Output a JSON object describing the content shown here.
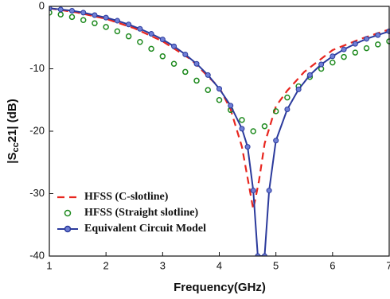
{
  "chart_data": {
    "type": "line",
    "xlabel": "Frequency(GHz)",
    "ylabel": {
      "main": "|S",
      "sub": "cc",
      "rest": "21| (dB)"
    },
    "xlim": [
      1,
      7
    ],
    "xticks": [
      1,
      2,
      3,
      4,
      5,
      6,
      7
    ],
    "ylim": [
      -40,
      0
    ],
    "yticks": [
      0,
      -10,
      -20,
      -30,
      -40
    ],
    "legend": "lower-left",
    "series": [
      {
        "name": "HFSS (C-slotline)",
        "color": "#e8261f",
        "style": "dashed",
        "x": [
          1.0,
          1.5,
          2.0,
          2.5,
          3.0,
          3.5,
          4.0,
          4.2,
          4.4,
          4.55,
          4.6,
          4.7,
          4.8,
          5.0,
          5.2,
          5.5,
          6.0,
          6.5,
          7.0
        ],
        "values": [
          -0.3,
          -1.0,
          -2.0,
          -3.5,
          -5.6,
          -8.5,
          -13.0,
          -16.5,
          -22.5,
          -30.0,
          -32.5,
          -28.0,
          -22.0,
          -16.0,
          -13.5,
          -10.5,
          -7.0,
          -5.2,
          -3.7
        ]
      },
      {
        "name": "HFSS (Straight slotline)",
        "color": "#1e8a1e",
        "style": "circles",
        "x": [
          1.0,
          1.2,
          1.4,
          1.6,
          1.8,
          2.0,
          2.2,
          2.4,
          2.6,
          2.8,
          3.0,
          3.2,
          3.4,
          3.6,
          3.8,
          4.0,
          4.2,
          4.4,
          4.6,
          4.8,
          5.0,
          5.2,
          5.4,
          5.6,
          5.8,
          6.0,
          6.2,
          6.4,
          6.6,
          6.8,
          7.0
        ],
        "values": [
          -1.0,
          -1.3,
          -1.7,
          -2.2,
          -2.7,
          -3.3,
          -4.0,
          -4.8,
          -5.7,
          -6.8,
          -8.0,
          -9.2,
          -10.5,
          -11.9,
          -13.4,
          -15.0,
          -16.6,
          -18.2,
          -20.0,
          -19.2,
          -16.8,
          -14.6,
          -12.8,
          -11.3,
          -10.0,
          -9.0,
          -8.1,
          -7.4,
          -6.7,
          -6.1,
          -5.6
        ]
      },
      {
        "name": "Equivalent Circuit Model",
        "color": "#2b3a9c",
        "style": "line-markers",
        "x": [
          1.0,
          1.2,
          1.4,
          1.6,
          1.8,
          2.0,
          2.2,
          2.4,
          2.6,
          2.8,
          3.0,
          3.2,
          3.4,
          3.6,
          3.8,
          4.0,
          4.2,
          4.4,
          4.5,
          4.6,
          4.68,
          4.8,
          4.88,
          5.0,
          5.2,
          5.4,
          5.6,
          5.8,
          6.0,
          6.2,
          6.4,
          6.6,
          6.8,
          7.0
        ],
        "values": [
          -0.3,
          -0.5,
          -0.7,
          -1.0,
          -1.4,
          -1.8,
          -2.3,
          -2.9,
          -3.6,
          -4.4,
          -5.3,
          -6.4,
          -7.7,
          -9.2,
          -11.0,
          -13.2,
          -15.9,
          -19.6,
          -22.5,
          -29.5,
          -40,
          -40,
          -29.5,
          -21.5,
          -16.5,
          -13.3,
          -11.0,
          -9.3,
          -8.0,
          -6.9,
          -6.0,
          -5.2,
          -4.6,
          -4.0
        ]
      }
    ]
  }
}
